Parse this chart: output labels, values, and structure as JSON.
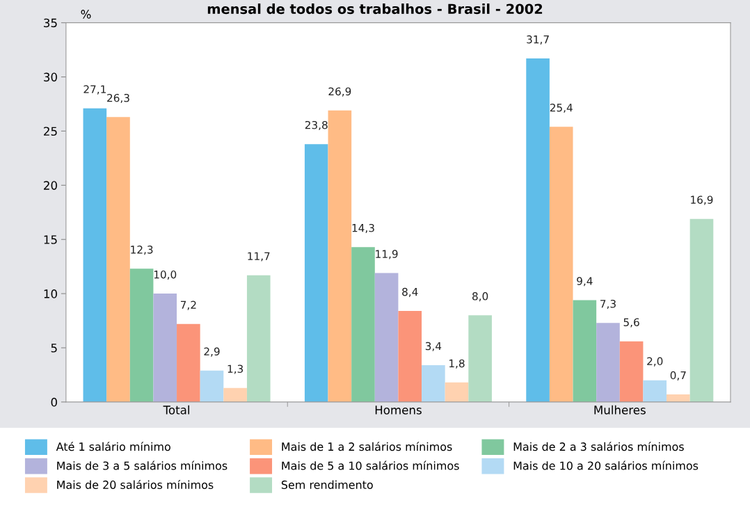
{
  "chart_data": {
    "type": "bar",
    "title": "mensal de todos os trabalhos - Brasil - 2002",
    "ylabel": "%",
    "categories": [
      "Total",
      "Homens",
      "Mulheres"
    ],
    "series": [
      {
        "name": "Até 1 salário mínimo",
        "color": "#5fbde9",
        "values": [
          27.1,
          23.8,
          31.7
        ],
        "value_labels": [
          "27,1",
          "23,8",
          "31,7"
        ]
      },
      {
        "name": "Mais de 1 a 2 salários mínimos",
        "color": "#ffbb85",
        "values": [
          26.3,
          26.9,
          25.4
        ],
        "value_labels": [
          "26,3",
          "26,9",
          "25,4"
        ]
      },
      {
        "name": "Mais de 2 a 3 salários mínimos",
        "color": "#80c89e",
        "values": [
          12.3,
          14.3,
          9.4
        ],
        "value_labels": [
          "12,3",
          "14,3",
          "9,4"
        ]
      },
      {
        "name": "Mais de 3 a 5 salários mínimos",
        "color": "#b3b3dc",
        "values": [
          10.0,
          11.9,
          7.3
        ],
        "value_labels": [
          "10,0",
          "11,9",
          "7,3"
        ]
      },
      {
        "name": "Mais de 5 a 10 salários mínimos",
        "color": "#fb9479",
        "values": [
          7.2,
          8.4,
          5.6
        ],
        "value_labels": [
          "7,2",
          "8,4",
          "5,6"
        ]
      },
      {
        "name": "Mais de 10 a 20 salários mínimos",
        "color": "#b3daf4",
        "values": [
          2.9,
          3.4,
          2.0
        ],
        "value_labels": [
          "2,9",
          "3,4",
          "2,0"
        ]
      },
      {
        "name": "Mais de 20 salários mínimos",
        "color": "#ffd2b0",
        "values": [
          1.3,
          1.8,
          0.7
        ],
        "value_labels": [
          "1,3",
          "1,8",
          "0,7"
        ]
      },
      {
        "name": "Sem rendimento",
        "color": "#b3dcc3",
        "values": [
          11.7,
          8.0,
          16.9
        ],
        "value_labels": [
          "11,7",
          "8,0",
          "16,9"
        ]
      }
    ],
    "ylim": [
      0,
      35
    ],
    "yticks": [
      0,
      5,
      10,
      15,
      20,
      25,
      30,
      35
    ],
    "grid": false,
    "legend": "bottom"
  }
}
